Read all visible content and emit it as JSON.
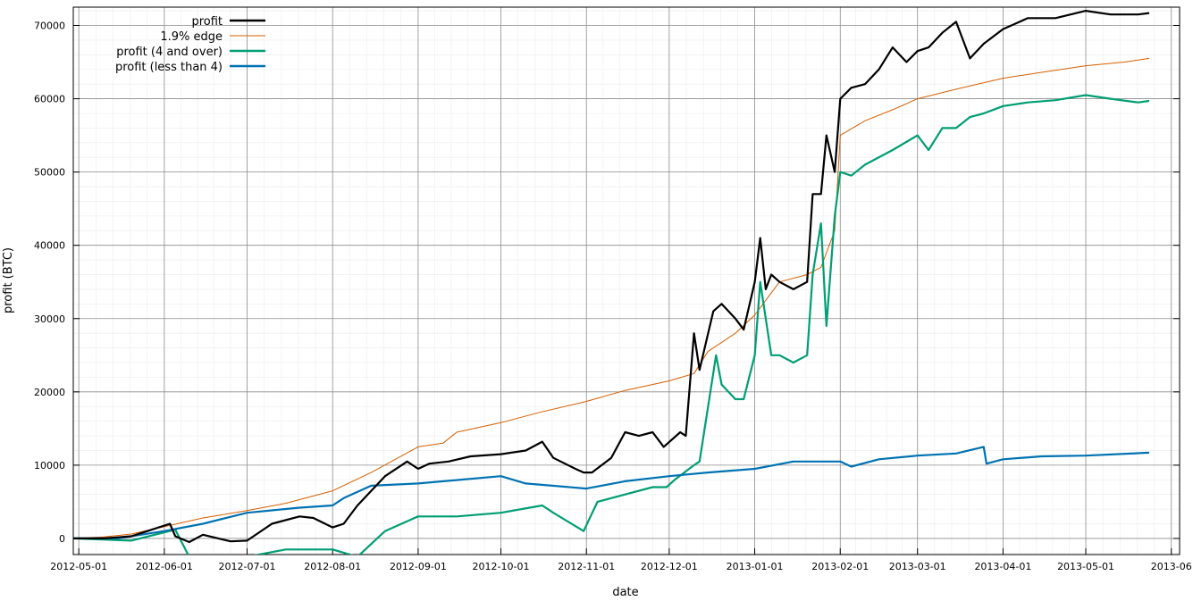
{
  "chart_data": {
    "type": "line",
    "title": "",
    "xlabel": "date",
    "ylabel": "profit (BTC)",
    "x_ticks": [
      "2012-05-01",
      "2012-06-01",
      "2012-07-01",
      "2012-08-01",
      "2012-09-01",
      "2012-10-01",
      "2012-11-01",
      "2012-12-01",
      "2013-01-01",
      "2013-02-01",
      "2013-03-01",
      "2013-04-01",
      "2013-05-01",
      "2013-06"
    ],
    "y_ticks": [
      "0",
      "10000",
      "20000",
      "30000",
      "40000",
      "50000",
      "60000",
      "70000"
    ],
    "y_tick_values": [
      0,
      10000,
      20000,
      30000,
      40000,
      50000,
      60000,
      70000
    ],
    "xlim": [
      "2012-04-29",
      "2013-06-04"
    ],
    "ylim": [
      -2200,
      72500
    ],
    "grid": true,
    "legend_position": "top-left",
    "series": [
      {
        "name": "profit",
        "color": "#000000",
        "x": [
          "2012-04-29",
          "2012-05-10",
          "2012-05-20",
          "2012-05-25",
          "2012-06-03",
          "2012-06-05",
          "2012-06-10",
          "2012-06-15",
          "2012-06-25",
          "2012-07-01",
          "2012-07-10",
          "2012-07-20",
          "2012-07-25",
          "2012-08-01",
          "2012-08-05",
          "2012-08-10",
          "2012-08-20",
          "2012-08-28",
          "2012-09-01",
          "2012-09-05",
          "2012-09-12",
          "2012-09-20",
          "2012-10-01",
          "2012-10-10",
          "2012-10-16",
          "2012-10-20",
          "2012-10-28",
          "2012-10-31",
          "2012-11-03",
          "2012-11-10",
          "2012-11-15",
          "2012-11-20",
          "2012-11-25",
          "2012-11-29",
          "2012-12-05",
          "2012-12-07",
          "2012-12-10",
          "2012-12-12",
          "2012-12-17",
          "2012-12-20",
          "2012-12-25",
          "2012-12-28",
          "2013-01-01",
          "2013-01-03",
          "2013-01-05",
          "2013-01-07",
          "2013-01-10",
          "2013-01-15",
          "2013-01-20",
          "2013-01-22",
          "2013-01-25",
          "2013-01-27",
          "2013-01-30",
          "2013-02-01",
          "2013-02-05",
          "2013-02-10",
          "2013-02-15",
          "2013-02-20",
          "2013-02-25",
          "2013-03-01",
          "2013-03-05",
          "2013-03-10",
          "2013-03-15",
          "2013-03-20",
          "2013-03-25",
          "2013-04-01",
          "2013-04-10",
          "2013-04-20",
          "2013-05-01",
          "2013-05-10",
          "2013-05-20",
          "2013-05-24"
        ],
        "values": [
          0,
          0,
          300,
          900,
          2000,
          300,
          -500,
          500,
          -400,
          -300,
          2000,
          3000,
          2800,
          1500,
          2000,
          4500,
          8500,
          10500,
          9500,
          10200,
          10500,
          11200,
          11500,
          12000,
          13200,
          11000,
          9500,
          9000,
          9000,
          11000,
          14500,
          14000,
          14500,
          12500,
          14500,
          14000,
          28000,
          23000,
          31000,
          32000,
          30000,
          28500,
          35000,
          41000,
          34000,
          36000,
          35000,
          34000,
          35000,
          47000,
          47000,
          55000,
          50000,
          60000,
          61500,
          62000,
          64000,
          67000,
          65000,
          66500,
          67000,
          69000,
          70500,
          65500,
          67500,
          69500,
          71000,
          71000,
          72000,
          71500,
          71500,
          71700
        ]
      },
      {
        "name": "1.9% edge",
        "color": "#d55e00",
        "x": [
          "2012-04-29",
          "2012-05-10",
          "2012-05-20",
          "2012-06-01",
          "2012-06-15",
          "2012-07-01",
          "2012-07-15",
          "2012-08-01",
          "2012-08-15",
          "2012-09-01",
          "2012-09-10",
          "2012-09-15",
          "2012-10-01",
          "2012-10-15",
          "2012-11-01",
          "2012-11-15",
          "2012-12-01",
          "2012-12-10",
          "2012-12-15",
          "2012-12-25",
          "2013-01-01",
          "2013-01-10",
          "2013-01-20",
          "2013-01-25",
          "2013-01-30",
          "2013-02-01",
          "2013-02-10",
          "2013-02-20",
          "2013-03-01",
          "2013-03-15",
          "2013-04-01",
          "2013-04-15",
          "2013-05-01",
          "2013-05-15",
          "2013-05-24"
        ],
        "values": [
          0,
          200,
          600,
          1600,
          2800,
          3800,
          4800,
          6500,
          9000,
          12500,
          13000,
          14500,
          15800,
          17200,
          18700,
          20200,
          21500,
          22500,
          25500,
          28000,
          30500,
          35000,
          36000,
          37000,
          42000,
          55000,
          57000,
          58500,
          60000,
          61300,
          62800,
          63600,
          64500,
          65000,
          65500
        ]
      },
      {
        "name": "profit (4 and over)",
        "color": "#009e73",
        "x": [
          "2012-04-29",
          "2012-05-20",
          "2012-06-05",
          "2012-06-10",
          "2012-07-01",
          "2012-07-15",
          "2012-08-01",
          "2012-08-10",
          "2012-08-20",
          "2012-09-01",
          "2012-09-05",
          "2012-09-15",
          "2012-10-01",
          "2012-10-16",
          "2012-10-20",
          "2012-10-31",
          "2012-11-05",
          "2012-11-15",
          "2012-11-25",
          "2012-11-30",
          "2012-12-03",
          "2012-12-10",
          "2012-12-12",
          "2012-12-18",
          "2012-12-20",
          "2012-12-25",
          "2012-12-28",
          "2013-01-01",
          "2013-01-03",
          "2013-01-07",
          "2013-01-10",
          "2013-01-15",
          "2013-01-20",
          "2013-01-22",
          "2013-01-25",
          "2013-01-27",
          "2013-01-30",
          "2013-02-01",
          "2013-02-05",
          "2013-02-10",
          "2013-02-20",
          "2013-03-01",
          "2013-03-05",
          "2013-03-10",
          "2013-03-15",
          "2013-03-20",
          "2013-03-25",
          "2013-04-01",
          "2013-04-10",
          "2013-04-20",
          "2013-05-01",
          "2013-05-10",
          "2013-05-20",
          "2013-05-24"
        ],
        "values": [
          0,
          -300,
          1200,
          -2500,
          -2500,
          -1500,
          -1500,
          -2500,
          1000,
          3000,
          3000,
          3000,
          3500,
          4500,
          3500,
          1000,
          5000,
          6000,
          7000,
          7000,
          8000,
          10000,
          10500,
          25000,
          21000,
          19000,
          19000,
          25000,
          35000,
          25000,
          25000,
          24000,
          25000,
          36000,
          43000,
          29000,
          44000,
          50000,
          49500,
          51000,
          53000,
          55000,
          53000,
          56000,
          56000,
          57500,
          58000,
          59000,
          59500,
          59800,
          60500,
          60000,
          59500,
          59700
        ]
      },
      {
        "name": "profit (less than 4)",
        "color": "#0072b2",
        "x": [
          "2012-04-29",
          "2012-05-15",
          "2012-06-01",
          "2012-06-15",
          "2012-07-01",
          "2012-07-20",
          "2012-08-01",
          "2012-08-05",
          "2012-08-15",
          "2012-09-01",
          "2012-10-01",
          "2012-10-10",
          "2012-11-01",
          "2012-11-15",
          "2012-12-01",
          "2012-12-15",
          "2013-01-01",
          "2013-01-15",
          "2013-02-01",
          "2013-02-05",
          "2013-02-15",
          "2013-03-01",
          "2013-03-15",
          "2013-03-25",
          "2013-03-26",
          "2013-04-01",
          "2013-04-15",
          "2013-05-01",
          "2013-05-24"
        ],
        "values": [
          0,
          0,
          1000,
          2000,
          3500,
          4200,
          4500,
          5500,
          7200,
          7500,
          8500,
          7500,
          6800,
          7800,
          8500,
          9000,
          9500,
          10500,
          10500,
          9800,
          10800,
          11300,
          11600,
          12500,
          10200,
          10800,
          11200,
          11300,
          11700
        ]
      }
    ]
  }
}
